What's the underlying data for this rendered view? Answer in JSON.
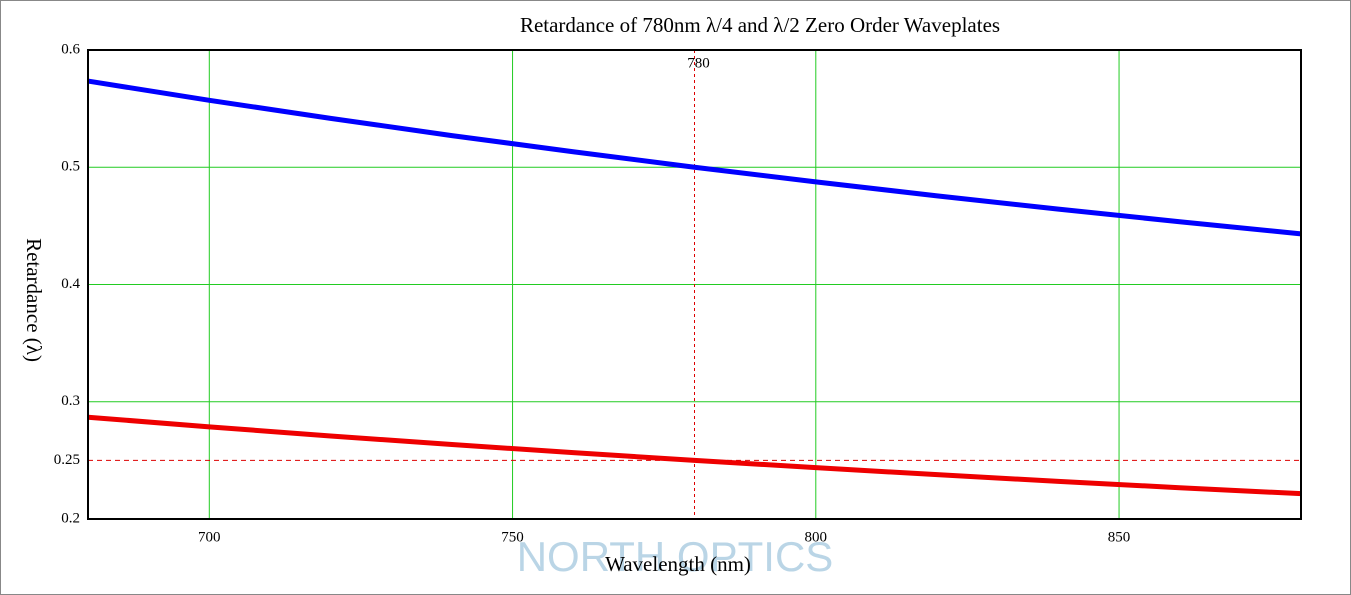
{
  "chart_data": {
    "type": "line",
    "title": "Retardance of 780nm λ/4 and λ/2 Zero Order Waveplates",
    "x_label": "Wavelength (nm)",
    "y_label": "Retardance (λ)",
    "watermark": "NORTH OPTICS",
    "x": [
      680,
      700,
      720,
      740,
      760,
      780,
      800,
      820,
      840,
      860,
      880
    ],
    "series": [
      {
        "color": "#0000ff",
        "values": [
          0.5735,
          0.5571,
          0.5417,
          0.527,
          0.5132,
          0.5,
          0.4875,
          0.4756,
          0.4643,
          0.4535,
          0.4432
        ]
      },
      {
        "color": "#ee0000",
        "values": [
          0.2868,
          0.2786,
          0.2708,
          0.2635,
          0.2566,
          0.25,
          0.2438,
          0.2378,
          0.2321,
          0.2267,
          0.2216
        ]
      }
    ],
    "xlim": [
      680,
      880
    ],
    "xticks": [
      700,
      750,
      800,
      850
    ],
    "ylim": [
      0.2,
      0.6
    ],
    "yticks": [
      0.2,
      0.3,
      0.4,
      0.5,
      0.6
    ],
    "markers": {
      "x": 780,
      "y": 0.25
    },
    "grid": true
  }
}
